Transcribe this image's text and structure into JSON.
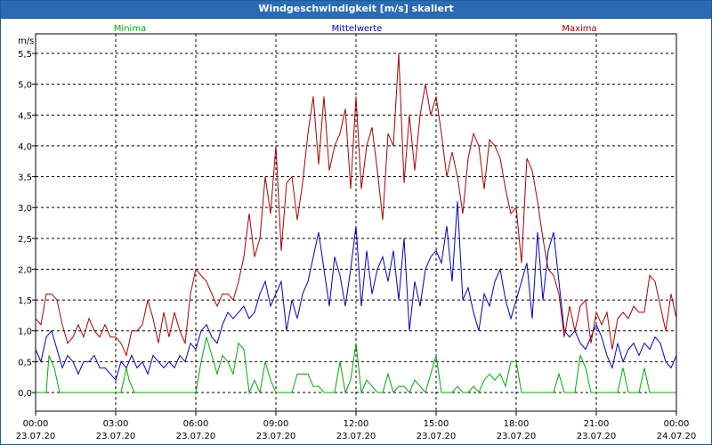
{
  "window": {
    "title": "Windgeschwindigkeit [m/s] skaliert"
  },
  "chart_data": {
    "type": "line",
    "title": "Windgeschwindigkeit [m/s] skaliert",
    "ylabel": "m/s",
    "ylim": [
      0,
      5.5
    ],
    "y_ticks": [
      "0,0",
      "0,5",
      "1,0",
      "1,5",
      "2,0",
      "2,5",
      "3,0",
      "3,5",
      "4,0",
      "4,5",
      "5,0",
      "5,5"
    ],
    "x_ticks": [
      {
        "time": "00:00",
        "date": "23.07.20"
      },
      {
        "time": "03:00",
        "date": "23.07.20"
      },
      {
        "time": "06:00",
        "date": "23.07.20"
      },
      {
        "time": "09:00",
        "date": "23.07.20"
      },
      {
        "time": "12:00",
        "date": "23.07.20"
      },
      {
        "time": "15:00",
        "date": "23.07.20"
      },
      {
        "time": "18:00",
        "date": "23.07.20"
      },
      {
        "time": "21:00",
        "date": "23.07.20"
      },
      {
        "time": "00:00",
        "date": "24.07.20"
      }
    ],
    "xlim_hours": [
      0,
      24
    ],
    "grid": true,
    "legend": "top",
    "series": [
      {
        "name": "Minima",
        "color": "#00aa00",
        "x_hours": [
          0,
          0.2,
          0.4,
          0.5,
          0.7,
          0.9,
          1.0,
          1.3,
          1.6,
          1.9,
          2.2,
          2.5,
          2.8,
          3.0,
          3.2,
          3.4,
          3.5,
          3.7,
          3.9,
          4.1,
          4.4,
          4.7,
          5.0,
          5.3,
          5.6,
          5.8,
          6.0,
          6.2,
          6.4,
          6.6,
          6.8,
          7.0,
          7.2,
          7.4,
          7.6,
          7.8,
          8.0,
          8.2,
          8.4,
          8.6,
          8.8,
          9.0,
          9.2,
          9.4,
          9.6,
          9.8,
          10.0,
          10.2,
          10.4,
          10.6,
          10.8,
          11.0,
          11.2,
          11.4,
          11.6,
          11.8,
          12.0,
          12.2,
          12.4,
          12.6,
          12.8,
          13.0,
          13.2,
          13.4,
          13.6,
          13.8,
          14.0,
          14.2,
          14.4,
          14.6,
          14.8,
          15.0,
          15.2,
          15.4,
          15.6,
          15.8,
          16.0,
          16.2,
          16.4,
          16.6,
          16.8,
          17.0,
          17.2,
          17.4,
          17.6,
          17.8,
          18.0,
          18.2,
          18.4,
          18.6,
          18.8,
          19.0,
          19.2,
          19.4,
          19.6,
          19.8,
          20.0,
          20.2,
          20.4,
          20.6,
          20.8,
          21.0,
          21.2,
          21.4,
          21.6,
          21.8,
          22.0,
          22.2,
          22.4,
          22.6,
          22.8,
          23.0,
          23.2,
          23.4,
          23.6,
          23.8,
          24.0
        ],
        "values": [
          0,
          0,
          0,
          0.6,
          0.4,
          0,
          0,
          0,
          0,
          0,
          0,
          0,
          0,
          0,
          0,
          0.4,
          0.2,
          0,
          0,
          0,
          0,
          0,
          0,
          0,
          0,
          0,
          0,
          0.5,
          0.9,
          0.6,
          0.3,
          0.6,
          0.5,
          0.3,
          0.8,
          0.7,
          0,
          0.2,
          0,
          0.5,
          0.2,
          0,
          0,
          0,
          0,
          0.3,
          0.3,
          0.3,
          0.1,
          0.1,
          0,
          0,
          0,
          0.5,
          0,
          0.2,
          0.8,
          0,
          0.2,
          0.1,
          0,
          0,
          0.3,
          0,
          0.1,
          0.1,
          0,
          0.2,
          0.1,
          0,
          0.3,
          0.6,
          0,
          0,
          0,
          0.1,
          0,
          0,
          0.1,
          0,
          0.2,
          0.3,
          0.2,
          0.3,
          0.1,
          0.5,
          0.5,
          0,
          0,
          0,
          0,
          0,
          0,
          0,
          0.3,
          0,
          0,
          0,
          0.6,
          0.4,
          0,
          0,
          0,
          0,
          0,
          0,
          0.4,
          0,
          0,
          0,
          0.4,
          0,
          0,
          0,
          0,
          0,
          0
        ]
      },
      {
        "name": "Mittelwerte",
        "color": "#0000bb",
        "x_hours": [
          0,
          0.2,
          0.4,
          0.6,
          0.8,
          1.0,
          1.2,
          1.4,
          1.6,
          1.8,
          2.0,
          2.2,
          2.4,
          2.6,
          2.8,
          3.0,
          3.2,
          3.4,
          3.6,
          3.8,
          4.0,
          4.2,
          4.4,
          4.6,
          4.8,
          5.0,
          5.2,
          5.4,
          5.6,
          5.8,
          6.0,
          6.2,
          6.4,
          6.6,
          6.8,
          7.0,
          7.2,
          7.4,
          7.6,
          7.8,
          8.0,
          8.2,
          8.4,
          8.6,
          8.8,
          9.0,
          9.2,
          9.4,
          9.6,
          9.8,
          10.0,
          10.2,
          10.4,
          10.6,
          10.8,
          11.0,
          11.2,
          11.4,
          11.6,
          11.8,
          12.0,
          12.2,
          12.4,
          12.6,
          12.8,
          13.0,
          13.2,
          13.4,
          13.6,
          13.8,
          14.0,
          14.2,
          14.4,
          14.6,
          14.8,
          15.0,
          15.2,
          15.4,
          15.6,
          15.8,
          16.0,
          16.2,
          16.4,
          16.6,
          16.8,
          17.0,
          17.2,
          17.4,
          17.6,
          17.8,
          18.0,
          18.2,
          18.4,
          18.6,
          18.8,
          19.0,
          19.2,
          19.4,
          19.6,
          19.8,
          20.0,
          20.2,
          20.4,
          20.6,
          20.8,
          21.0,
          21.2,
          21.4,
          21.6,
          21.8,
          22.0,
          22.2,
          22.4,
          22.6,
          22.8,
          23.0,
          23.2,
          23.4,
          23.6,
          23.8,
          24.0
        ],
        "values": [
          0.7,
          0.5,
          0.9,
          1.0,
          0.7,
          0.4,
          0.6,
          0.5,
          0.3,
          0.5,
          0.5,
          0.6,
          0.4,
          0.4,
          0.3,
          0.2,
          0.5,
          0.4,
          0.6,
          0.4,
          0.5,
          0.3,
          0.6,
          0.5,
          0.4,
          0.5,
          0.4,
          0.6,
          0.5,
          0.8,
          0.7,
          1.0,
          1.1,
          0.9,
          0.8,
          1.1,
          1.3,
          1.2,
          1.3,
          1.4,
          1.2,
          1.3,
          1.6,
          1.8,
          1.4,
          1.6,
          1.8,
          1.0,
          1.5,
          1.2,
          1.6,
          1.8,
          2.2,
          2.6,
          2.0,
          1.4,
          2.2,
          1.9,
          1.4,
          2.0,
          2.7,
          1.4,
          2.3,
          1.6,
          2.0,
          2.2,
          1.8,
          2.3,
          1.5,
          2.5,
          1.0,
          1.8,
          1.4,
          2.0,
          2.2,
          2.3,
          2.1,
          2.7,
          1.8,
          3.1,
          1.5,
          1.7,
          1.3,
          1.0,
          1.6,
          1.4,
          1.8,
          2.0,
          1.5,
          1.2,
          1.5,
          1.8,
          2.1,
          1.2,
          2.6,
          1.5,
          2.3,
          2.6,
          1.8,
          1.0,
          0.9,
          1.0,
          0.8,
          0.7,
          0.9,
          1.1,
          0.9,
          0.6,
          0.4,
          0.8,
          0.5,
          0.7,
          0.8,
          0.6,
          0.8,
          0.7,
          0.9,
          0.8,
          0.5,
          0.4,
          0.6
        ]
      },
      {
        "name": "Maxima",
        "color": "#aa0000",
        "x_hours": [
          0,
          0.2,
          0.4,
          0.6,
          0.8,
          1.0,
          1.2,
          1.4,
          1.6,
          1.8,
          2.0,
          2.2,
          2.4,
          2.6,
          2.8,
          3.0,
          3.2,
          3.4,
          3.6,
          3.8,
          4.0,
          4.2,
          4.4,
          4.6,
          4.8,
          5.0,
          5.2,
          5.4,
          5.6,
          5.8,
          6.0,
          6.2,
          6.4,
          6.6,
          6.8,
          7.0,
          7.2,
          7.4,
          7.6,
          7.8,
          8.0,
          8.2,
          8.4,
          8.6,
          8.8,
          9.0,
          9.2,
          9.4,
          9.6,
          9.8,
          10.0,
          10.2,
          10.4,
          10.6,
          10.8,
          11.0,
          11.2,
          11.4,
          11.6,
          11.8,
          12.0,
          12.2,
          12.4,
          12.6,
          12.8,
          13.0,
          13.2,
          13.4,
          13.6,
          13.8,
          14.0,
          14.2,
          14.4,
          14.6,
          14.8,
          15.0,
          15.2,
          15.4,
          15.6,
          15.8,
          16.0,
          16.2,
          16.4,
          16.6,
          16.8,
          17.0,
          17.2,
          17.4,
          17.6,
          17.8,
          18.0,
          18.2,
          18.4,
          18.6,
          18.8,
          19.0,
          19.2,
          19.4,
          19.6,
          19.8,
          20.0,
          20.2,
          20.4,
          20.6,
          20.8,
          21.0,
          21.2,
          21.4,
          21.6,
          21.8,
          22.0,
          22.2,
          22.4,
          22.6,
          22.8,
          23.0,
          23.2,
          23.4,
          23.6,
          23.8,
          24.0
        ],
        "values": [
          1.2,
          1.1,
          1.6,
          1.6,
          1.5,
          1.1,
          0.8,
          0.9,
          1.1,
          0.9,
          1.2,
          1.0,
          0.9,
          1.1,
          0.9,
          0.9,
          0.8,
          0.6,
          1.0,
          1.0,
          1.1,
          1.5,
          1.2,
          0.8,
          1.3,
          0.9,
          1.3,
          1.0,
          0.8,
          1.6,
          2.0,
          1.9,
          1.8,
          1.6,
          1.4,
          1.6,
          1.6,
          1.5,
          1.8,
          2.2,
          2.9,
          2.2,
          2.5,
          3.5,
          2.9,
          4.0,
          2.3,
          3.4,
          3.5,
          2.8,
          3.4,
          4.2,
          4.8,
          3.7,
          4.8,
          3.6,
          4.0,
          4.2,
          4.6,
          3.3,
          4.8,
          3.3,
          4.0,
          4.3,
          3.6,
          2.8,
          4.2,
          4.0,
          5.5,
          3.4,
          4.5,
          3.6,
          4.5,
          5.0,
          4.5,
          4.8,
          4.2,
          3.5,
          3.9,
          3.5,
          2.9,
          3.8,
          4.2,
          4.0,
          3.3,
          4.1,
          4.0,
          3.8,
          3.3,
          2.9,
          3.0,
          2.1,
          3.8,
          3.6,
          3.1,
          2.5,
          2.0,
          1.9,
          1.6,
          0.9,
          1.4,
          1.0,
          1.4,
          1.5,
          0.8,
          1.3,
          1.1,
          1.3,
          0.7,
          1.2,
          1.3,
          1.2,
          1.4,
          1.3,
          1.3,
          1.9,
          1.8,
          1.4,
          1.0,
          1.6,
          1.2
        ]
      }
    ]
  }
}
